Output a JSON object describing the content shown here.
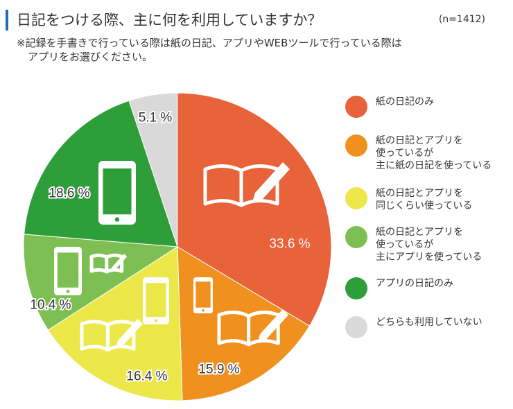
{
  "chart_data": {
    "type": "pie",
    "title": "日記をつける際、主に何を利用していますか？",
    "sample_size": "(n=1412)",
    "subtitle_line1": "※記録を手書きで行っている際は紙の日記、アプリやWEBツールで行っている際は",
    "subtitle_line2": "アプリをお選びください。",
    "slices": [
      {
        "label": "紙の日記のみ",
        "value": 33.6,
        "display": "33.6 %",
        "color": "#e8623a"
      },
      {
        "label": "紙の日記とアプリを\n使っているが\n主に紙の日記を使っている",
        "value": 15.9,
        "display": "15.9 %",
        "color": "#f0911f"
      },
      {
        "label": "紙の日記とアプリを\n同じくらい使っている",
        "value": 16.4,
        "display": "16.4 %",
        "color": "#ece84a"
      },
      {
        "label": "紙の日記とアプリを\n使っているが\n主にアプリを使っている",
        "value": 10.4,
        "display": "10.4 %",
        "color": "#7dbf52"
      },
      {
        "label": "アプリの日記のみ",
        "value": 18.6,
        "display": "18.6 %",
        "color": "#2e9e3b"
      },
      {
        "label": "どちらも利用していない",
        "value": 5.1,
        "display": "5.1 %",
        "color": "#d9d9d9"
      }
    ],
    "legend_position": "right"
  }
}
